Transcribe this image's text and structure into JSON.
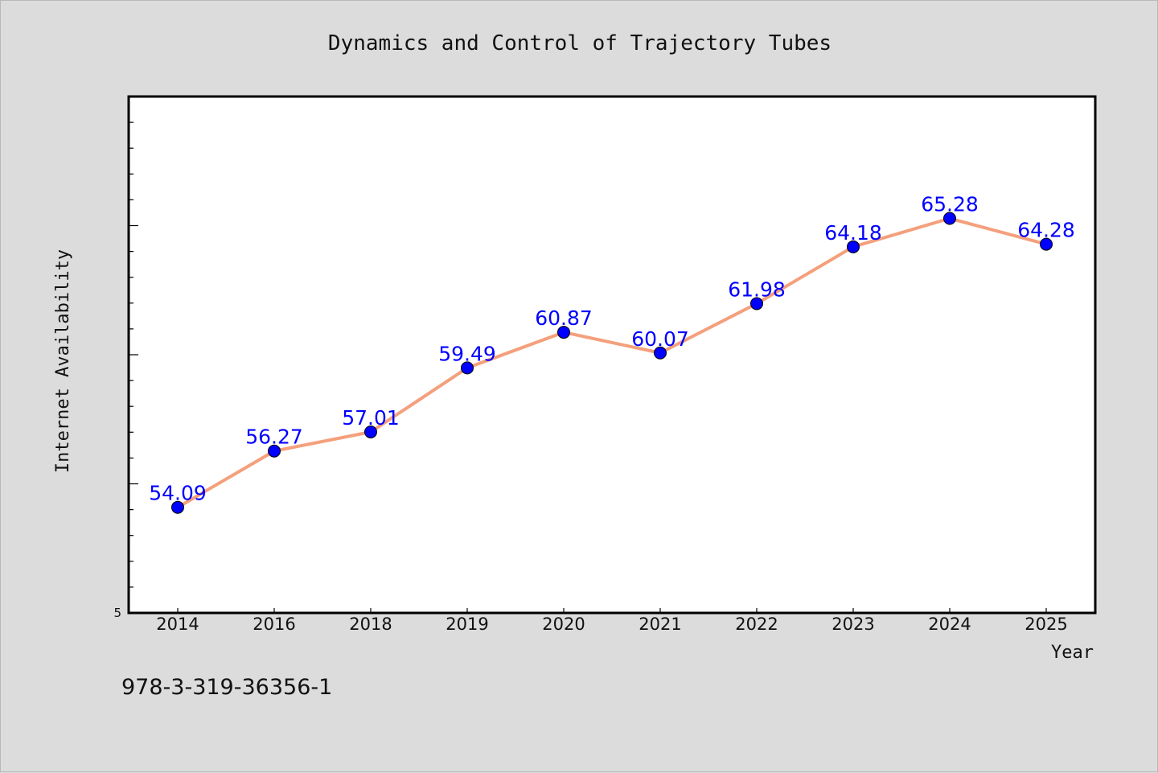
{
  "chart_data": {
    "type": "line",
    "title": "Dynamics and Control of Trajectory Tubes",
    "xlabel": "Year",
    "ylabel": "Internet Availability",
    "categories": [
      "2014",
      "2016",
      "2018",
      "2019",
      "2020",
      "2021",
      "2022",
      "2023",
      "2024",
      "2025"
    ],
    "series": [
      {
        "values": [
          54.09,
          56.27,
          57.01,
          59.49,
          60.87,
          60.07,
          61.98,
          64.18,
          65.28,
          64.28
        ],
        "data_labels": [
          "54.09",
          "56.27",
          "57.01",
          "59.49",
          "60.87",
          "60.07",
          "61.98",
          "64.18",
          "65.28",
          "64.28"
        ]
      }
    ],
    "ylim": [
      50,
      70
    ],
    "y_tick_label": "5",
    "grid": false,
    "line_color": "#f4a07c",
    "marker_color": "#0000ff",
    "label_color": "#0000ff"
  },
  "footer": {
    "isbn": "978-3-319-36356-1"
  }
}
